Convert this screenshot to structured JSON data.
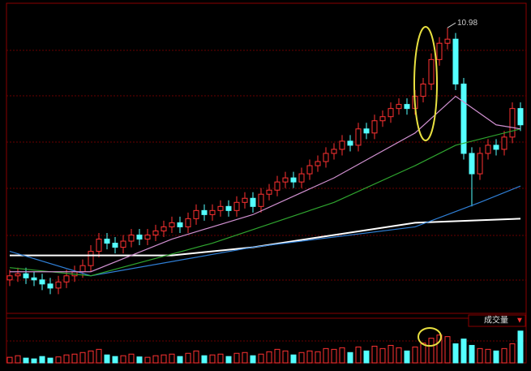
{
  "chart_data": {
    "type": "candlestick",
    "volume_title": "成交量",
    "ylim": [
      4,
      11.5
    ],
    "vlim": [
      0,
      100
    ],
    "up_color": "#ff3232",
    "down_color": "#54ffff",
    "open": [
      4.8,
      4.9,
      4.95,
      4.85,
      4.8,
      4.7,
      4.6,
      4.75,
      4.9,
      5.0,
      5.15,
      5.5,
      5.8,
      5.7,
      5.6,
      5.75,
      5.9,
      5.8,
      5.9,
      6.0,
      6.1,
      6.2,
      6.1,
      6.3,
      6.5,
      6.4,
      6.5,
      6.6,
      6.5,
      6.7,
      6.8,
      6.6,
      6.9,
      7.0,
      7.2,
      7.3,
      7.2,
      7.4,
      7.6,
      7.7,
      7.9,
      8.0,
      8.2,
      8.1,
      8.5,
      8.4,
      8.7,
      8.8,
      9.0,
      9.1,
      9.0,
      9.3,
      9.6,
      10.2,
      10.6,
      10.7,
      9.6,
      7.9,
      7.4,
      7.9,
      8.1,
      8.0,
      8.3,
      9.0
    ],
    "high": [
      5.05,
      5.1,
      5.1,
      5.0,
      4.95,
      4.85,
      4.9,
      5.05,
      5.15,
      5.3,
      5.65,
      5.95,
      5.95,
      5.85,
      5.9,
      6.05,
      6.05,
      6.05,
      6.15,
      6.25,
      6.35,
      6.35,
      6.45,
      6.65,
      6.65,
      6.65,
      6.75,
      6.75,
      6.85,
      6.95,
      6.95,
      7.05,
      7.15,
      7.35,
      7.45,
      7.45,
      7.55,
      7.75,
      7.85,
      8.05,
      8.15,
      8.35,
      8.35,
      8.65,
      8.65,
      8.85,
      8.95,
      9.15,
      9.25,
      9.25,
      9.45,
      9.75,
      10.35,
      10.75,
      10.98,
      10.85,
      9.75,
      8.05,
      8.05,
      8.25,
      8.25,
      8.45,
      9.15,
      9.15
    ],
    "low": [
      4.65,
      4.75,
      4.7,
      4.65,
      4.55,
      4.45,
      4.45,
      4.6,
      4.75,
      4.85,
      5.0,
      5.35,
      5.55,
      5.45,
      5.45,
      5.6,
      5.65,
      5.65,
      5.75,
      5.85,
      5.95,
      5.95,
      5.95,
      6.15,
      6.25,
      6.25,
      6.35,
      6.35,
      6.35,
      6.55,
      6.45,
      6.45,
      6.75,
      6.85,
      7.05,
      7.05,
      7.05,
      7.25,
      7.45,
      7.55,
      7.75,
      7.85,
      7.95,
      7.95,
      8.25,
      8.25,
      8.55,
      8.65,
      8.85,
      8.85,
      8.85,
      9.15,
      9.45,
      10.05,
      10.45,
      9.45,
      7.75,
      6.6,
      7.25,
      7.75,
      7.85,
      7.85,
      8.15,
      8.45
    ],
    "close": [
      4.9,
      4.95,
      4.85,
      4.8,
      4.7,
      4.6,
      4.75,
      4.9,
      5.0,
      5.15,
      5.5,
      5.8,
      5.7,
      5.6,
      5.75,
      5.9,
      5.8,
      5.9,
      6.0,
      6.1,
      6.2,
      6.1,
      6.3,
      6.5,
      6.4,
      6.5,
      6.6,
      6.5,
      6.7,
      6.8,
      6.6,
      6.9,
      7.0,
      7.2,
      7.3,
      7.2,
      7.4,
      7.6,
      7.7,
      7.9,
      8.0,
      8.2,
      8.1,
      8.5,
      8.4,
      8.7,
      8.8,
      9.0,
      9.1,
      9.0,
      9.3,
      9.6,
      10.2,
      10.6,
      10.7,
      9.6,
      7.9,
      7.4,
      7.9,
      8.1,
      8.0,
      8.3,
      9.0,
      8.6
    ],
    "volume": [
      14,
      18,
      12,
      10,
      16,
      12,
      15,
      20,
      22,
      26,
      30,
      34,
      20,
      16,
      18,
      22,
      15,
      14,
      18,
      20,
      22,
      16,
      24,
      30,
      18,
      20,
      22,
      16,
      24,
      26,
      18,
      22,
      28,
      34,
      30,
      20,
      26,
      30,
      28,
      36,
      34,
      38,
      26,
      40,
      30,
      42,
      36,
      44,
      38,
      30,
      40,
      50,
      62,
      70,
      66,
      48,
      60,
      44,
      36,
      34,
      30,
      36,
      48,
      80
    ],
    "series": [
      {
        "color": "#ffffff",
        "x": [
          0,
          20,
          30,
          40,
          50,
          63
        ],
        "values": [
          5.4,
          5.4,
          5.6,
          5.9,
          6.2,
          6.3
        ]
      },
      {
        "color": "#2f7fd6",
        "x": [
          0,
          10,
          30,
          50,
          58,
          63
        ],
        "values": [
          5.5,
          4.9,
          5.6,
          6.1,
          6.7,
          7.1
        ]
      },
      {
        "color": "#2fa52f",
        "x": [
          0,
          10,
          25,
          40,
          50,
          55,
          63
        ],
        "values": [
          5.1,
          4.9,
          5.7,
          6.7,
          7.6,
          8.1,
          8.5
        ]
      },
      {
        "color": "#d090d0",
        "x": [
          0,
          10,
          20,
          30,
          40,
          50,
          55,
          60,
          63
        ],
        "values": [
          5.0,
          5.0,
          5.8,
          6.4,
          7.3,
          8.4,
          9.3,
          8.6,
          8.5
        ]
      }
    ]
  }
}
